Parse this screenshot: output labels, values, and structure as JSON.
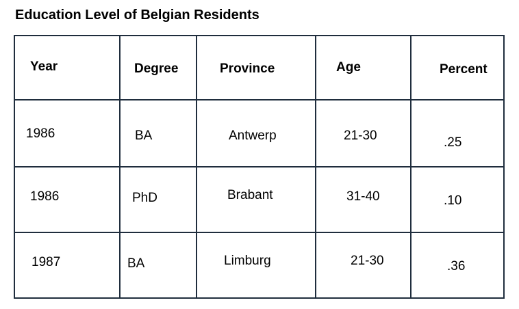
{
  "title": "Education Level of Belgian Residents",
  "table": {
    "headers": [
      "Year",
      "Degree",
      "Province",
      "Age",
      "Percent"
    ],
    "rows": [
      [
        "1986",
        "BA",
        "Antwerp",
        "21-30",
        ".25"
      ],
      [
        "1986",
        "PhD",
        "Brabant",
        "31-40",
        ".10"
      ],
      [
        "1987",
        "BA",
        "Limburg",
        "21-30",
        ".36"
      ]
    ]
  },
  "colors": {
    "border": "#1f2d3d",
    "text": "#000000",
    "background": "#ffffff"
  }
}
